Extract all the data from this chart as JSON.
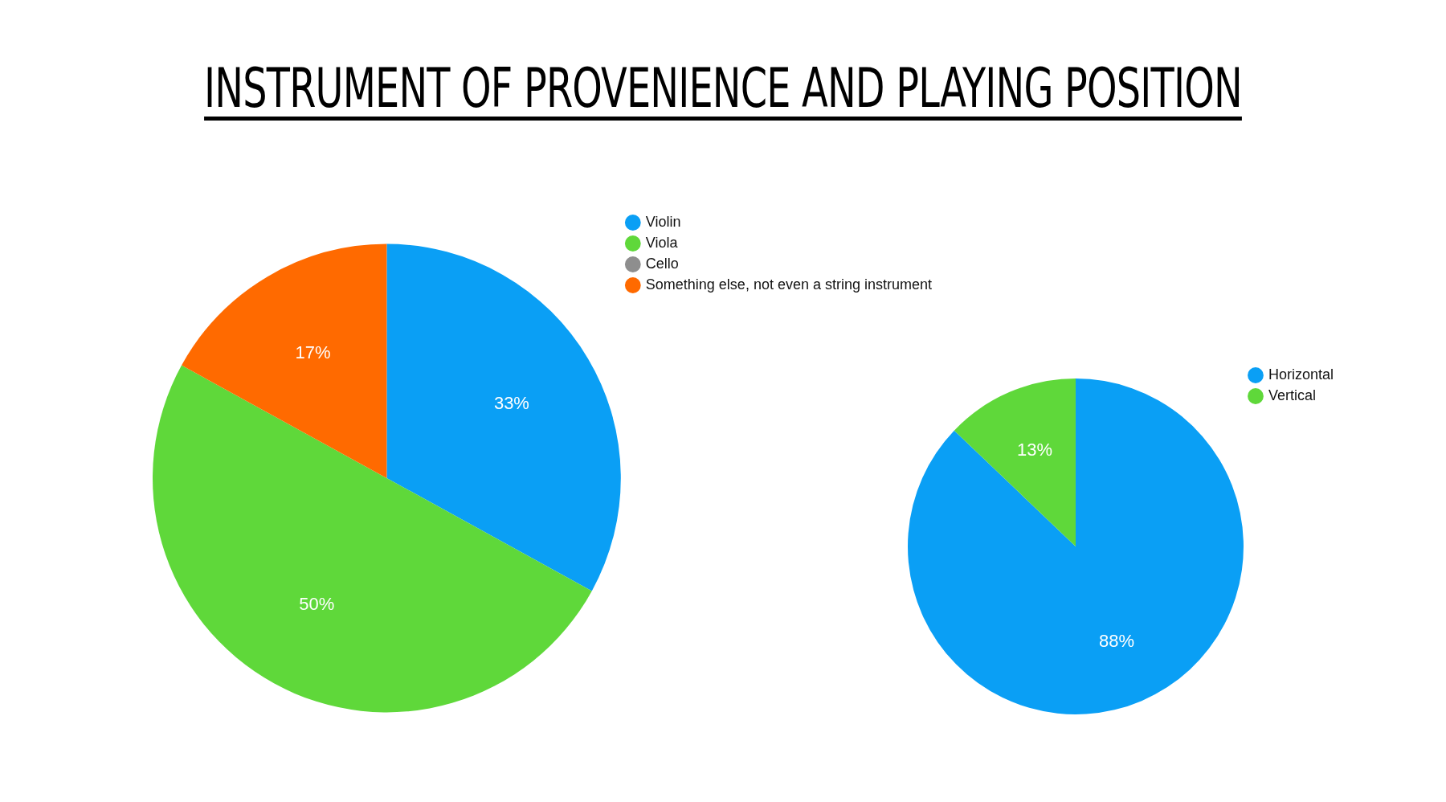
{
  "chart_data": [
    {
      "type": "pie",
      "title": "INSTRUMENT OF PROVENIENCE AND PLAYING POSITION",
      "categories": [
        "Violin",
        "Viola",
        "Cello",
        "Something else, not even a string instrument"
      ],
      "values": [
        33,
        50,
        0,
        17
      ],
      "colors": [
        "#0a9ff5",
        "#5fd83a",
        "#8e8e8e",
        "#ff6a00"
      ],
      "value_labels": [
        "33%",
        "50%",
        null,
        "17%"
      ],
      "legend": "top right"
    },
    {
      "type": "pie",
      "categories": [
        "Horizontal",
        "Vertical"
      ],
      "values": [
        88,
        13
      ],
      "colors": [
        "#0a9ff5",
        "#5fd83a"
      ],
      "value_labels": [
        "88%",
        "13%"
      ],
      "legend": "top right"
    }
  ]
}
